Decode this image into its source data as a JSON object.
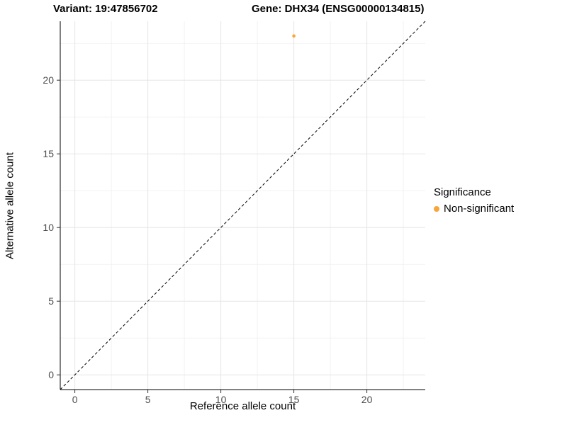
{
  "titles": {
    "variant": "Variant: 19:47856702",
    "gene": "Gene: DHX34 (ENSG00000134815)"
  },
  "legend": {
    "title": "Significance",
    "items": [
      {
        "label": "Non-significant",
        "color": "#FAA43A"
      }
    ]
  },
  "chart_data": {
    "type": "scatter",
    "title": "",
    "xlabel": "Reference allele count",
    "ylabel": "Alternative allele count",
    "xlim": [
      -1,
      24
    ],
    "ylim": [
      -1,
      24
    ],
    "xticks": [
      0,
      5,
      10,
      15,
      20
    ],
    "yticks": [
      0,
      5,
      10,
      15,
      20
    ],
    "minor_ticks": [
      2.5,
      7.5,
      12.5,
      17.5,
      22.5
    ],
    "grid": true,
    "legend_position": "right",
    "series": [
      {
        "name": "Non-significant",
        "color": "#FAA43A",
        "points": [
          {
            "x": 15,
            "y": 23
          }
        ]
      }
    ],
    "reference_line": {
      "type": "identity",
      "style": "dashed",
      "color": "#000000"
    },
    "colors": {
      "axis_line": "#000000",
      "tick": "#333333",
      "tick_label": "#4d4d4d",
      "grid_major": "#e5e5e5",
      "grid_minor": "#f2f2f2",
      "panel_background": "#ffffff"
    }
  }
}
